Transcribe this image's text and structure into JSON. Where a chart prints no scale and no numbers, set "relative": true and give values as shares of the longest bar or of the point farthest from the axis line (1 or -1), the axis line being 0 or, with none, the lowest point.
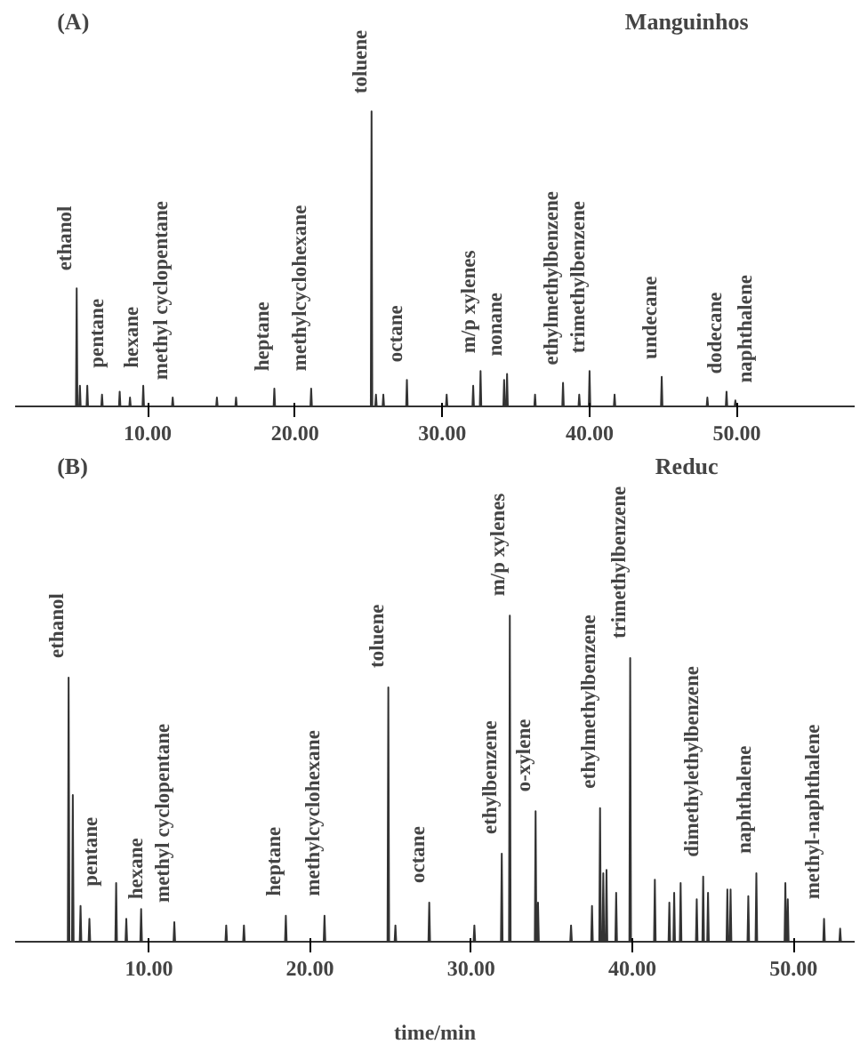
{
  "chart_data": [
    {
      "type": "line",
      "title": "(A)",
      "subtitle": "Manguinhos",
      "relative": true,
      "grid": false,
      "xlim": [
        1,
        58
      ],
      "xticks": [
        {
          "value": 10,
          "label": "10.00"
        },
        {
          "value": 20,
          "label": "20.00"
        },
        {
          "value": 30,
          "label": "30.00"
        },
        {
          "value": 40,
          "label": "40.00"
        },
        {
          "value": 50,
          "label": "50.00"
        }
      ],
      "series": [
        {
          "color": "#333333",
          "x": [
            2,
            5.13,
            5.18,
            5.23,
            5.35,
            5.4,
            5.45,
            5.85,
            5.9,
            5.95,
            6.85,
            6.9,
            6.95,
            8.05,
            8.1,
            8.15,
            8.75,
            8.8,
            8.85,
            9.65,
            9.7,
            9.75,
            11.65,
            11.7,
            11.75,
            14.65,
            14.7,
            14.75,
            15.95,
            16.0,
            16.05,
            18.55,
            18.6,
            18.65,
            21.05,
            21.1,
            21.15,
            25.15,
            25.2,
            25.25,
            25.45,
            25.5,
            25.55,
            25.95,
            26.0,
            26.05,
            27.55,
            27.6,
            27.65,
            30.25,
            30.3,
            30.35,
            32.05,
            32.1,
            32.15,
            32.55,
            32.6,
            32.65,
            34.15,
            34.2,
            34.25,
            34.35,
            34.4,
            34.45,
            36.25,
            36.3,
            36.35,
            38.15,
            38.2,
            38.25,
            39.25,
            39.3,
            39.35,
            39.95,
            40.0,
            40.05,
            41.65,
            41.7,
            41.75,
            44.85,
            44.9,
            44.95,
            47.95,
            48.0,
            48.05,
            49.25,
            49.3,
            49.35,
            49.85,
            49.9,
            49.95,
            57
          ],
          "values": [
            0,
            0,
            0.4,
            0,
            0,
            0.07,
            0,
            0,
            0.07,
            0,
            0,
            0.04,
            0,
            0,
            0.05,
            0,
            0,
            0.03,
            0,
            0,
            0.07,
            0,
            0,
            0.03,
            0,
            0,
            0.03,
            0,
            0,
            0.03,
            0,
            0,
            0.06,
            0,
            0,
            0.06,
            0,
            0,
            1.0,
            0,
            0,
            0.04,
            0,
            0,
            0.04,
            0,
            0,
            0.09,
            0,
            0,
            0.04,
            0,
            0,
            0.07,
            0,
            0,
            0.12,
            0,
            0,
            0.09,
            0,
            0,
            0.11,
            0,
            0,
            0.04,
            0,
            0,
            0.08,
            0,
            0,
            0.04,
            0,
            0,
            0.12,
            0,
            0,
            0.04,
            0,
            0,
            0.1,
            0,
            0,
            0.03,
            0,
            0,
            0.05,
            0,
            0,
            0.02,
            0,
            0
          ]
        }
      ],
      "annotations": [
        {
          "text": "ethanol",
          "x": 5.18,
          "y": 0.4
        },
        {
          "text": "pentane",
          "x": 5.9,
          "y": 0.07
        },
        {
          "text": "hexane",
          "x": 9.7,
          "y": 0.07
        },
        {
          "text": "methyl cyclopentane",
          "x": 11.7,
          "y": 0.03
        },
        {
          "text": "heptane",
          "x": 18.6,
          "y": 0.06
        },
        {
          "text": "methylcyclohexane",
          "x": 21.1,
          "y": 0.06
        },
        {
          "text": "toluene",
          "x": 25.2,
          "y": 1.0
        },
        {
          "text": "octane",
          "x": 27.6,
          "y": 0.09
        },
        {
          "text": "m/p xylenes",
          "x": 32.6,
          "y": 0.12
        },
        {
          "text": "nonane",
          "x": 34.4,
          "y": 0.11
        },
        {
          "text": "ethylmethylbenzene",
          "x": 38.2,
          "y": 0.08
        },
        {
          "text": "trimethylbenzene",
          "x": 40.0,
          "y": 0.12
        },
        {
          "text": "undecane",
          "x": 44.9,
          "y": 0.1
        },
        {
          "text": "dodecane",
          "x": 49.3,
          "y": 0.05
        },
        {
          "text": "naphthalene",
          "x": 49.9,
          "y": 0.02
        }
      ]
    },
    {
      "type": "line",
      "title": "(B)",
      "subtitle": "Reduc",
      "xlabel": "time/min",
      "relative": true,
      "grid": false,
      "xlim": [
        1.7,
        53.8
      ],
      "xticks": [
        {
          "value": 10,
          "label": "10.00"
        },
        {
          "value": 20,
          "label": "20.00"
        },
        {
          "value": 30,
          "label": "30.00"
        },
        {
          "value": 40,
          "label": "40.00"
        },
        {
          "value": 50,
          "label": "50.00"
        }
      ],
      "series": [
        {
          "color": "#333333",
          "x": [
            2.5,
            4.97,
            5.02,
            5.07,
            5.23,
            5.28,
            5.33,
            5.71,
            5.76,
            5.81,
            6.26,
            6.31,
            6.36,
            7.92,
            7.97,
            8.02,
            8.55,
            8.6,
            8.65,
            9.47,
            9.52,
            9.57,
            11.53,
            11.58,
            11.63,
            14.75,
            14.8,
            14.85,
            15.85,
            15.9,
            15.95,
            18.45,
            18.5,
            18.55,
            20.85,
            20.9,
            20.95,
            24.81,
            24.86,
            24.91,
            25.25,
            25.3,
            25.35,
            27.35,
            27.4,
            27.45,
            30.15,
            30.2,
            30.25,
            31.85,
            31.9,
            31.95,
            32.35,
            32.4,
            32.45,
            33.95,
            34.0,
            34.05,
            34.1,
            34.15,
            34.2,
            36.15,
            36.2,
            36.25,
            37.45,
            37.5,
            37.55,
            37.95,
            38.0,
            38.05,
            38.15,
            38.2,
            38.25,
            38.35,
            38.4,
            38.45,
            38.95,
            39.0,
            39.05,
            39.82,
            39.87,
            39.92,
            41.35,
            41.4,
            41.45,
            42.25,
            42.3,
            42.35,
            42.55,
            42.6,
            42.65,
            42.95,
            43.0,
            43.05,
            43.95,
            44.0,
            44.05,
            44.35,
            44.4,
            44.45,
            44.65,
            44.7,
            44.75,
            45.85,
            45.9,
            45.95,
            46.05,
            46.1,
            46.15,
            47.15,
            47.2,
            47.25,
            47.65,
            47.7,
            47.75,
            49.45,
            49.5,
            49.55,
            49.6,
            49.65,
            49.7,
            51.85,
            51.9,
            51.95,
            52.85,
            52.9,
            52.95,
            53.6
          ],
          "values": [
            0,
            0,
            0.81,
            0,
            0,
            0.45,
            0,
            0,
            0.11,
            0,
            0,
            0.07,
            0,
            0,
            0.18,
            0,
            0,
            0.07,
            0,
            0,
            0.1,
            0,
            0,
            0.06,
            0,
            0,
            0.05,
            0,
            0,
            0.05,
            0,
            0,
            0.08,
            0,
            0,
            0.08,
            0,
            0,
            0.78,
            0,
            0,
            0.05,
            0,
            0,
            0.12,
            0,
            0,
            0.05,
            0,
            0,
            0.27,
            0,
            0,
            1.0,
            0,
            0,
            0.4,
            0,
            0,
            0.12,
            0,
            0,
            0.05,
            0,
            0,
            0.11,
            0,
            0,
            0.41,
            0,
            0,
            0.21,
            0,
            0,
            0.22,
            0,
            0,
            0.15,
            0,
            0,
            0.87,
            0,
            0,
            0.19,
            0,
            0,
            0.12,
            0,
            0,
            0.15,
            0,
            0,
            0.18,
            0,
            0,
            0.13,
            0,
            0,
            0.2,
            0,
            0,
            0.15,
            0,
            0,
            0.16,
            0,
            0,
            0.16,
            0,
            0,
            0.14,
            0,
            0,
            0.21,
            0,
            0,
            0.18,
            0,
            0,
            0.13,
            0,
            0,
            0.07,
            0,
            0,
            0.04,
            0,
            0
          ]
        }
      ],
      "annotations": [
        {
          "text": "ethanol",
          "x": 5.02,
          "y": 0.81
        },
        {
          "text": "pentane",
          "x": 5.76,
          "y": 0.11
        },
        {
          "text": "hexane",
          "x": 8.6,
          "y": 0.07
        },
        {
          "text": "methyl cyclopentane",
          "x": 11.58,
          "y": 0.06
        },
        {
          "text": "heptane",
          "x": 18.5,
          "y": 0.08
        },
        {
          "text": "methylcyclohexane",
          "x": 20.9,
          "y": 0.08
        },
        {
          "text": "toluene",
          "x": 24.86,
          "y": 0.78
        },
        {
          "text": "octane",
          "x": 27.4,
          "y": 0.12
        },
        {
          "text": "ethylbenzene",
          "x": 31.9,
          "y": 0.27
        },
        {
          "text": "m/p xylenes",
          "x": 32.4,
          "y": 1.0
        },
        {
          "text": "o-xylene",
          "x": 34.0,
          "y": 0.4
        },
        {
          "text": "ethylmethylbenzene",
          "x": 38.0,
          "y": 0.41
        },
        {
          "text": "trimethylbenzene",
          "x": 39.87,
          "y": 0.87
        },
        {
          "text": "dimethylethylbenzene",
          "x": 44.4,
          "y": 0.2
        },
        {
          "text": "naphthalene",
          "x": 47.7,
          "y": 0.21
        },
        {
          "text": "methyl-naphthalene",
          "x": 51.9,
          "y": 0.07
        }
      ]
    }
  ]
}
